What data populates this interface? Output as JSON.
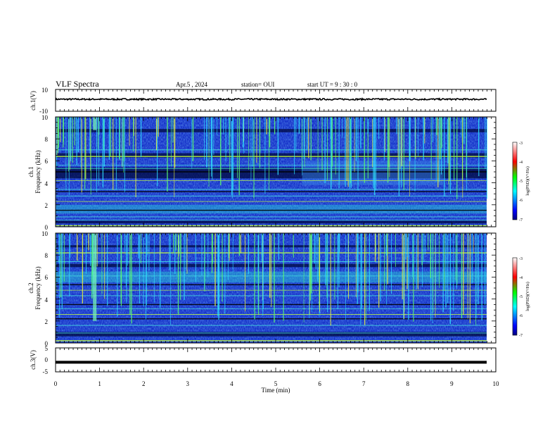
{
  "header": {
    "title": "VLF Spectra",
    "date": "Apr.5 , 2024",
    "station": "station= OUI",
    "start": "start UT = 9 : 30 : 0"
  },
  "chart_data": [
    {
      "type": "line",
      "ylabel": "ch.1(V)",
      "ylim": [
        -10,
        10
      ],
      "yticks": [
        "10",
        "-10"
      ],
      "xlim": [
        0,
        10
      ],
      "level": 1
    },
    {
      "type": "heatmap",
      "ylabel_line1": "ch.1",
      "ylabel_line2": "Frequency (kHz)",
      "ylim": [
        0,
        10
      ],
      "yticks": [
        "0",
        "2",
        "4",
        "6",
        "8",
        "10"
      ],
      "xlim": [
        0,
        10
      ],
      "colorbar": {
        "label": "log(PSD)(V²/Hz)",
        "range": [
          -7,
          -3
        ],
        "ticks": [
          "-3",
          "-4",
          "-5",
          "-6",
          "-7"
        ]
      }
    },
    {
      "type": "heatmap",
      "ylabel_line1": "ch.2",
      "ylabel_line2": "Frequency (kHz)",
      "ylim": [
        0,
        10
      ],
      "yticks": [
        "0",
        "2",
        "4",
        "6",
        "8",
        "10"
      ],
      "xlim": [
        0,
        10
      ],
      "colorbar": {
        "label": "log(PSD)(V²/Hz)",
        "range": [
          -7,
          -3
        ],
        "ticks": [
          "-3",
          "-4",
          "-5",
          "-6",
          "-7"
        ]
      }
    },
    {
      "type": "line",
      "ylabel": "ch.3(V)",
      "ylim": [
        -5,
        5
      ],
      "yticks": [
        "5",
        "0",
        "-5"
      ],
      "xlim": [
        0,
        10
      ],
      "level": -1
    }
  ],
  "xaxis": {
    "label": "Time (min)",
    "ticks": [
      "0",
      "1",
      "2",
      "3",
      "4",
      "5",
      "6",
      "7",
      "8",
      "9",
      "10"
    ]
  }
}
